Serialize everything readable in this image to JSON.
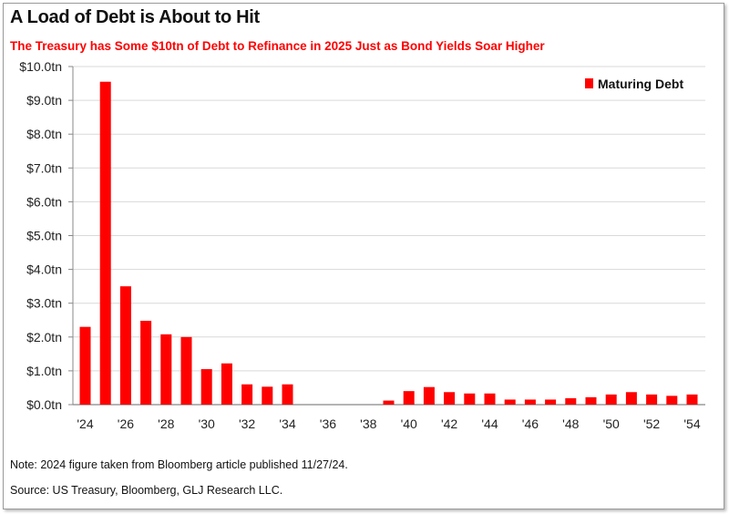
{
  "title": "A Load of Debt is About to Hit",
  "subtitle": "The Treasury has Some $10tn of Debt to Refinance in 2025 Just as Bond Yields Soar Higher",
  "note": "Note: 2024 figure taken from Bloomberg article published 11/27/24.",
  "source": "Source: US Treasury, Bloomberg, GLJ Research LLC.",
  "chart_data": {
    "type": "bar",
    "title": "A Load of Debt is About to Hit",
    "xlabel": "",
    "ylabel": "",
    "ylim": [
      0,
      10
    ],
    "grid": true,
    "legend_position": "top-right",
    "color": "#ff0000",
    "y_ticks": [
      "$0.0tn",
      "$1.0tn",
      "$2.0tn",
      "$3.0tn",
      "$4.0tn",
      "$5.0tn",
      "$6.0tn",
      "$7.0tn",
      "$8.0tn",
      "$9.0tn",
      "$10.0tn"
    ],
    "x_tick_labels": [
      "'24",
      "'26",
      "'28",
      "'30",
      "'32",
      "'34",
      "'36",
      "'38",
      "'40",
      "'42",
      "'44",
      "'46",
      "'48",
      "'50",
      "'52",
      "'54"
    ],
    "categories": [
      2024,
      2025,
      2026,
      2027,
      2028,
      2029,
      2030,
      2031,
      2032,
      2033,
      2034,
      2035,
      2036,
      2037,
      2038,
      2039,
      2040,
      2041,
      2042,
      2043,
      2044,
      2045,
      2046,
      2047,
      2048,
      2049,
      2050,
      2051,
      2052,
      2053,
      2054
    ],
    "series": [
      {
        "name": "Maturing Debt",
        "values": [
          2.3,
          9.55,
          3.5,
          2.48,
          2.08,
          2.0,
          1.05,
          1.22,
          0.6,
          0.53,
          0.6,
          0,
          0,
          0,
          0,
          0.12,
          0.4,
          0.52,
          0.37,
          0.33,
          0.33,
          0.15,
          0.15,
          0.15,
          0.19,
          0.22,
          0.3,
          0.37,
          0.3,
          0.26,
          0.3
        ]
      }
    ]
  }
}
